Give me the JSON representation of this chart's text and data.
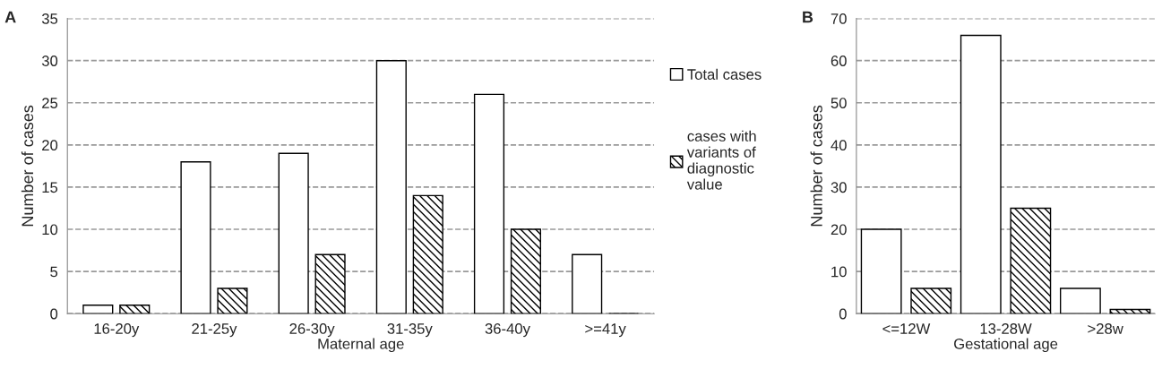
{
  "chart_data": [
    {
      "type": "bar",
      "title": "A",
      "xlabel": "Maternal age",
      "ylabel": "Number of cases",
      "categories": [
        "16-20y",
        "21-25y",
        "26-30y",
        "31-35y",
        "36-40y",
        ">=41y"
      ],
      "series": [
        {
          "name": "Total cases",
          "color": "#ffffff",
          "values": [
            1,
            18,
            19,
            30,
            26,
            7
          ]
        },
        {
          "name": "cases with variants of diagnostic value",
          "color": "#000000",
          "values": [
            1,
            3,
            7,
            14,
            10,
            0
          ]
        }
      ],
      "ylim": [
        0,
        35
      ],
      "yticks": [
        0,
        5,
        10,
        15,
        20,
        25,
        30,
        35
      ],
      "grid": "y",
      "legend": "right"
    },
    {
      "type": "bar",
      "title": "B",
      "xlabel": "Gestational age",
      "ylabel": "Number of cases",
      "categories": [
        "<=12W",
        "13-28W",
        ">28w"
      ],
      "series": [
        {
          "color": "#ffffff",
          "values": [
            20,
            66,
            6
          ]
        },
        {
          "color": "#000000",
          "values": [
            6,
            25,
            1
          ]
        }
      ],
      "ylim": [
        0,
        70
      ],
      "yticks": [
        0,
        10,
        20,
        30,
        40,
        50,
        60,
        70
      ],
      "grid": "y"
    }
  ]
}
